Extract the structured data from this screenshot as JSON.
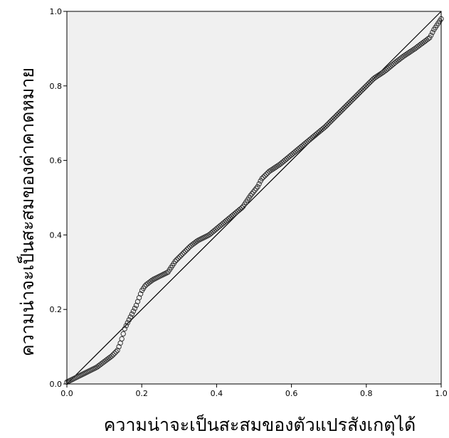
{
  "chart_data": {
    "type": "scatter",
    "title": "",
    "xlabel": "ความน่าจะเป็นสะสมของตัวแปรสังเกตุได้",
    "ylabel": "ความน่าจะเป็นสะสมของค่าคาดหมาย",
    "xlim": [
      0.0,
      1.0
    ],
    "ylim": [
      0.0,
      1.0
    ],
    "x_ticks": [
      "0.0",
      "0.2",
      "0.4",
      "0.6",
      "0.8",
      "1.0"
    ],
    "y_ticks": [
      "0.0",
      "0.2",
      "0.4",
      "0.6",
      "0.8",
      "1.0"
    ],
    "grid": false,
    "reference_line": {
      "x": [
        0.0,
        1.0
      ],
      "y": [
        0.0,
        1.0
      ]
    },
    "curve": [
      [
        0.0,
        0.005
      ],
      [
        0.02,
        0.015
      ],
      [
        0.05,
        0.03
      ],
      [
        0.08,
        0.045
      ],
      [
        0.1,
        0.06
      ],
      [
        0.12,
        0.075
      ],
      [
        0.135,
        0.09
      ],
      [
        0.145,
        0.115
      ],
      [
        0.155,
        0.15
      ],
      [
        0.17,
        0.18
      ],
      [
        0.185,
        0.21
      ],
      [
        0.2,
        0.25
      ],
      [
        0.21,
        0.265
      ],
      [
        0.23,
        0.28
      ],
      [
        0.25,
        0.29
      ],
      [
        0.27,
        0.3
      ],
      [
        0.29,
        0.33
      ],
      [
        0.31,
        0.35
      ],
      [
        0.33,
        0.37
      ],
      [
        0.35,
        0.385
      ],
      [
        0.38,
        0.4
      ],
      [
        0.41,
        0.425
      ],
      [
        0.44,
        0.45
      ],
      [
        0.47,
        0.475
      ],
      [
        0.49,
        0.505
      ],
      [
        0.51,
        0.53
      ],
      [
        0.52,
        0.55
      ],
      [
        0.54,
        0.57
      ],
      [
        0.57,
        0.59
      ],
      [
        0.6,
        0.615
      ],
      [
        0.63,
        0.64
      ],
      [
        0.66,
        0.665
      ],
      [
        0.69,
        0.69
      ],
      [
        0.72,
        0.72
      ],
      [
        0.75,
        0.75
      ],
      [
        0.78,
        0.78
      ],
      [
        0.8,
        0.8
      ],
      [
        0.82,
        0.82
      ],
      [
        0.85,
        0.84
      ],
      [
        0.88,
        0.865
      ],
      [
        0.9,
        0.88
      ],
      [
        0.93,
        0.9
      ],
      [
        0.95,
        0.915
      ],
      [
        0.97,
        0.93
      ],
      [
        0.98,
        0.95
      ],
      [
        0.99,
        0.965
      ],
      [
        1.0,
        0.98
      ]
    ],
    "point_count": 260,
    "colors": {
      "plot_background": "#f0f0f0",
      "points": "#333333",
      "line": "#000000",
      "frame": "#000000"
    }
  }
}
